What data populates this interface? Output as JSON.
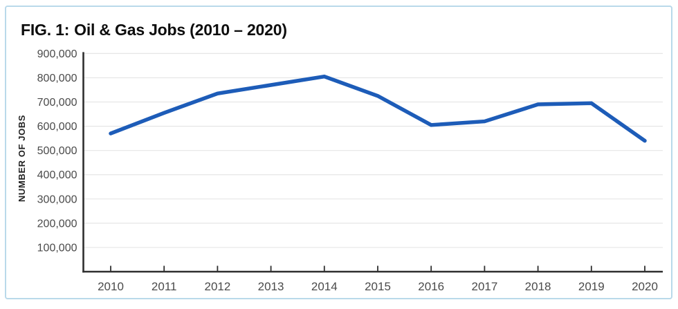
{
  "figure": {
    "title_prefix": "FIG. 1:",
    "title_rest": "Oil & Gas Jobs (2010 – 2020)"
  },
  "chart_data": {
    "type": "line",
    "title": "FIG. 1: Oil & Gas Jobs (2010 – 2020)",
    "x": [
      2010,
      2011,
      2012,
      2013,
      2014,
      2015,
      2016,
      2017,
      2018,
      2019,
      2020
    ],
    "series": [
      {
        "name": "Oil & Gas Jobs",
        "values": [
          570000,
          655000,
          735000,
          770000,
          805000,
          725000,
          605000,
          620000,
          690000,
          695000,
          540000
        ]
      }
    ],
    "xlabel": "",
    "ylabel": "NUMBER OF JOBS",
    "ylim": [
      0,
      900000
    ],
    "ytick_step": 100000,
    "yticks": [
      "100,000",
      "200,000",
      "300,000",
      "400,000",
      "500,000",
      "600,000",
      "700,000",
      "800,000",
      "900,000"
    ],
    "grid": "horizontal",
    "legend": "none",
    "line_color": "#1d5cb8"
  },
  "colors": {
    "line": "#1d5cb8",
    "card_border": "#b9d9ea",
    "grid": "#e6e6e6",
    "axis": "#2e2e2e",
    "tick_text": "#4a4a4a",
    "title_text": "#0d0d0d",
    "axis_title_text": "#222222"
  }
}
